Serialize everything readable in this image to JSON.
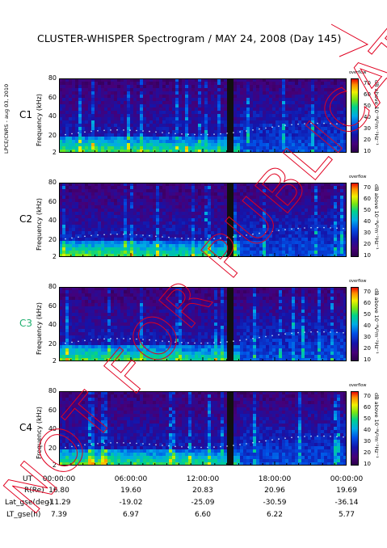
{
  "title": "CLUSTER-WHISPER Spectrogram / MAY 24, 2008 (Day 145)",
  "sidebar_text": "LPCE/CNRS - aug 03, 2010",
  "colorbar_top_label": "overflow",
  "colorbar_label": "dB above 10⁻⁸V²m⁻²Hz⁻¹",
  "colorbar_ticks": [
    "70",
    "60",
    "50",
    "40",
    "30",
    "20",
    "10"
  ],
  "ylabel": "Frequency (kHz)",
  "yticks": [
    "80",
    "60",
    "40",
    "20",
    "2"
  ],
  "panels": [
    {
      "id": "C1",
      "color": "#000000"
    },
    {
      "id": "C2",
      "color": "#000000"
    },
    {
      "id": "C3",
      "color": "#20b070"
    },
    {
      "id": "C4",
      "color": "#000000"
    }
  ],
  "xaxis": {
    "ut_label": "UT",
    "times": [
      "00:00:00",
      "06:00:00",
      "12:00:00",
      "18:00:00",
      "00:00:00"
    ],
    "ephemeris": [
      {
        "name": "R(Re)",
        "values": [
          "16.80",
          "19.60",
          "20.83",
          "20.96",
          "19.69"
        ]
      },
      {
        "name": "Lat_gse(deg)",
        "values": [
          "-11.29",
          "-19.02",
          "-25.09",
          "-30.59",
          "-36.14"
        ]
      },
      {
        "name": "LT_gse(h)",
        "values": [
          "7.39",
          "6.97",
          "6.60",
          "6.22",
          "5.77"
        ]
      }
    ]
  },
  "watermark": "NOT FOR PUBLICATION",
  "chart_data": {
    "type": "heatmap",
    "title": "CLUSTER-WHISPER Spectrogram / MAY 24, 2008 (Day 145)",
    "xlabel": "UT",
    "ylabel": "Frequency (kHz)",
    "ylim": [
      2,
      80
    ],
    "xlim": [
      "00:00:00",
      "24:00:00"
    ],
    "colorbar": {
      "label": "dB above 10⁻⁸V²m⁻²Hz⁻¹",
      "range": [
        10,
        70
      ]
    },
    "panels": [
      "C1",
      "C2",
      "C3",
      "C4"
    ],
    "data_gap_ut_hours": 14.2
  }
}
